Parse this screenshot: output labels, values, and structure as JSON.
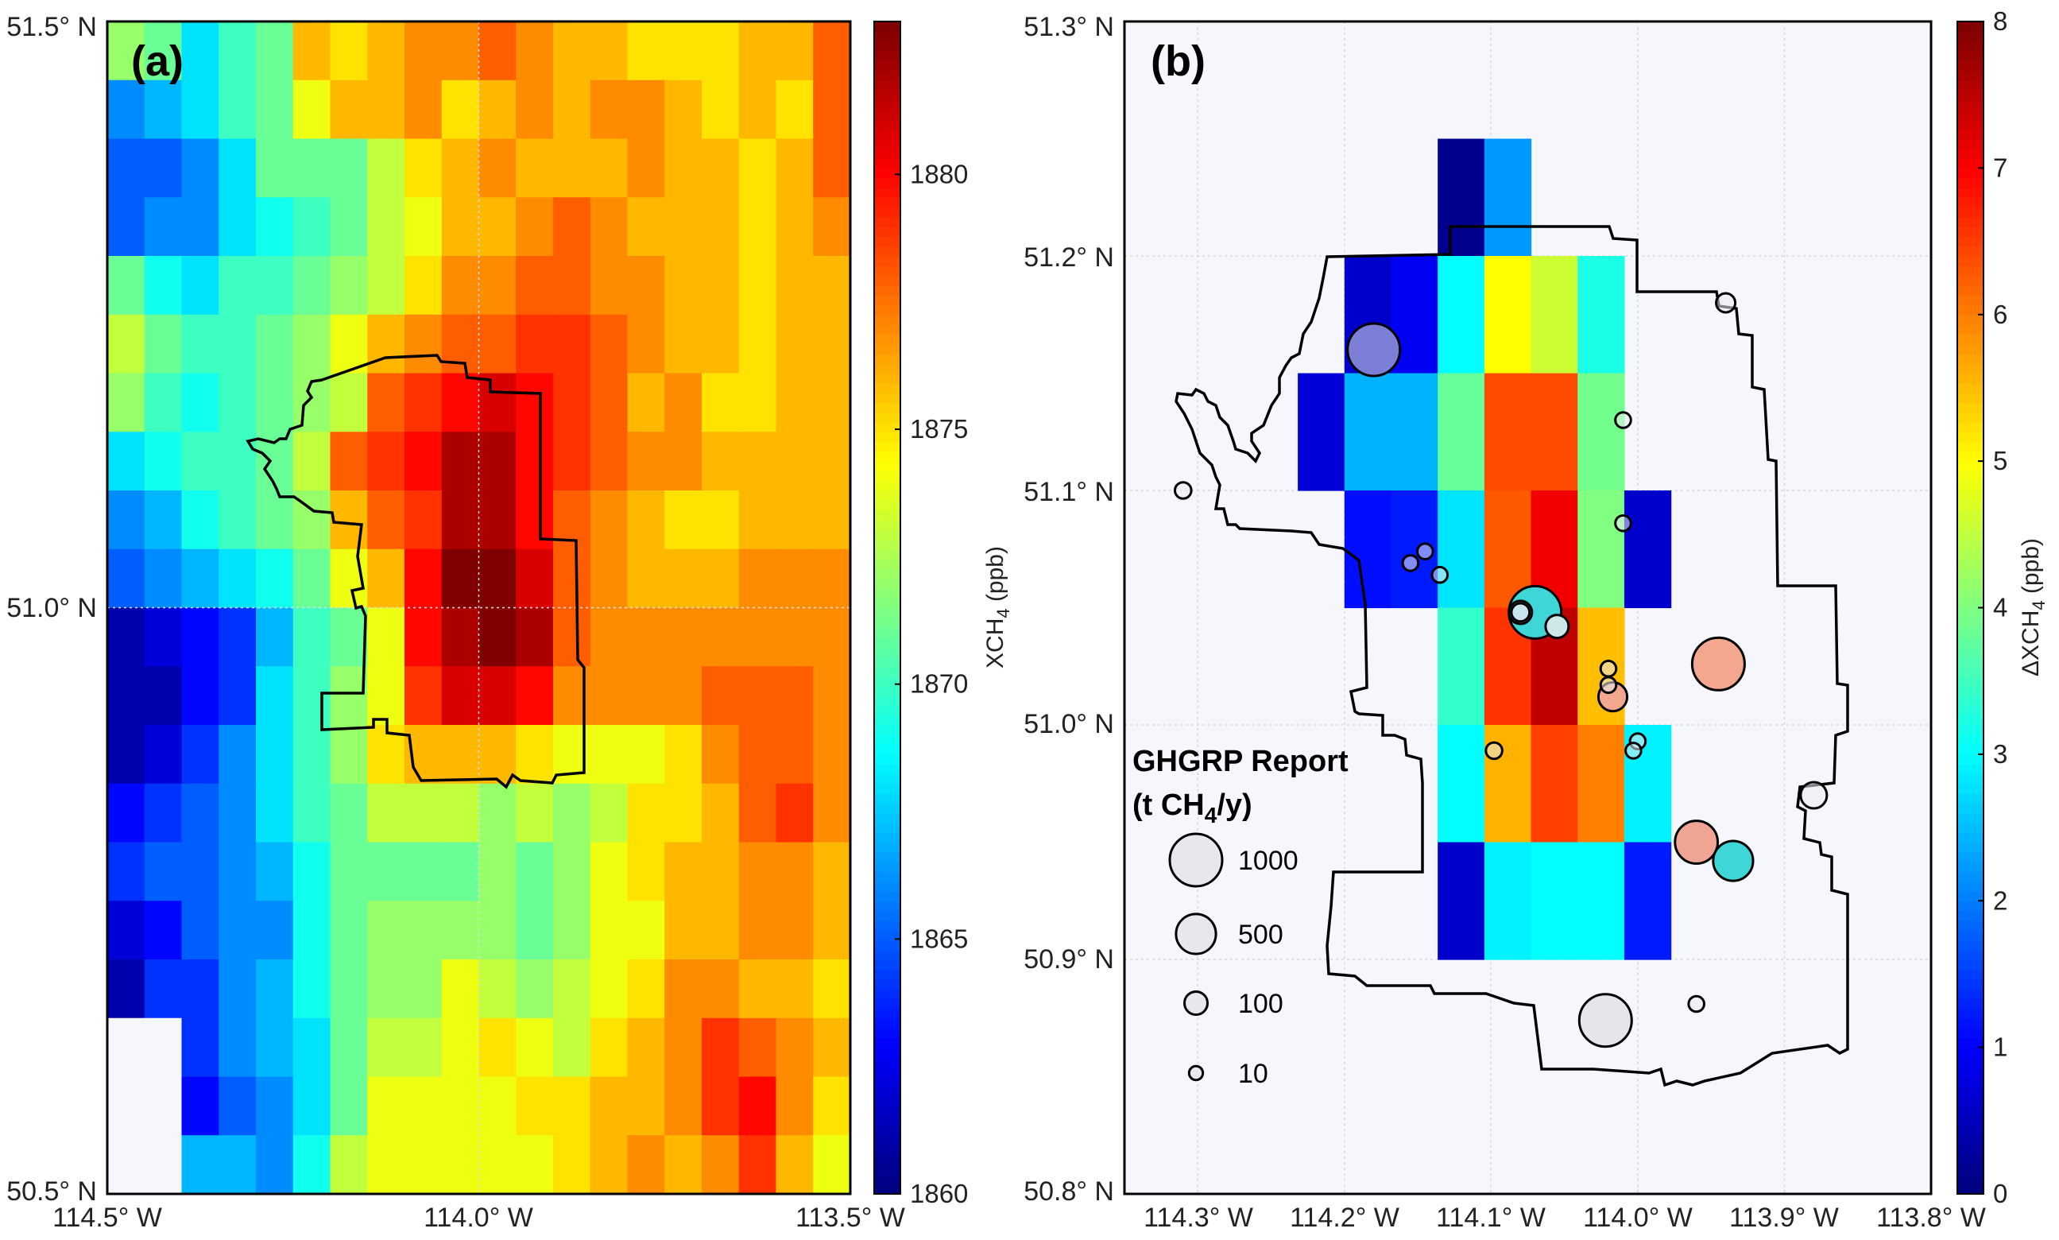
{
  "chart_data": [
    {
      "type": "heatmap",
      "panel_label": "(a)",
      "x_ticks": [
        "114.5° W",
        "114.0° W",
        "113.5° W"
      ],
      "y_ticks": [
        "50.5° N",
        "51.0° N",
        "51.5° N"
      ],
      "xlim": [
        -114.5,
        -113.5
      ],
      "ylim": [
        50.5,
        51.5
      ],
      "colorbar": {
        "label": "XCH4 (ppb)",
        "label_main": "XCH",
        "label_sub": "4",
        "label_unit": " (ppb)",
        "range": [
          1860,
          1883
        ],
        "ticks": [
          "1860",
          "1865",
          "1870",
          "1875",
          "1880"
        ]
      },
      "grid": {
        "nx": 20,
        "ny": 20,
        "row_order": "north_to_south",
        "values": [
          [
            1872,
            1871,
            1868,
            1870,
            1871,
            1876,
            1875,
            1876,
            1877,
            1877,
            1878,
            1877,
            1876,
            1876,
            1875,
            1875,
            1875,
            1876,
            1876,
            1878
          ],
          [
            1866,
            1867,
            1868,
            1870,
            1871,
            1874,
            1876,
            1876,
            1877,
            1875,
            1876,
            1877,
            1876,
            1877,
            1877,
            1876,
            1875,
            1876,
            1875,
            1878
          ],
          [
            1865,
            1865,
            1866,
            1868,
            1871,
            1871,
            1871,
            1873,
            1875,
            1876,
            1877,
            1876,
            1876,
            1876,
            1877,
            1876,
            1876,
            1875,
            1876,
            1878
          ],
          [
            1865,
            1866,
            1866,
            1868,
            1869,
            1870,
            1871,
            1873,
            1874,
            1876,
            1876,
            1877,
            1878,
            1877,
            1876,
            1876,
            1876,
            1875,
            1876,
            1877
          ],
          [
            1871,
            1869,
            1868,
            1870,
            1870,
            1871,
            1872,
            1873,
            1875,
            1877,
            1877,
            1878,
            1878,
            1877,
            1877,
            1876,
            1876,
            1875,
            1876,
            1876
          ],
          [
            1873,
            1871,
            1870,
            1870,
            1871,
            1872,
            1874,
            1876,
            1877,
            1878,
            1878,
            1879,
            1879,
            1878,
            1877,
            1876,
            1876,
            1875,
            1876,
            1876
          ],
          [
            1872,
            1870,
            1869,
            1870,
            1871,
            1872,
            1873,
            1878,
            1879,
            1880,
            1881,
            1880,
            1879,
            1878,
            1876,
            1877,
            1875,
            1875,
            1876,
            1876
          ],
          [
            1868,
            1869,
            1870,
            1870,
            1871,
            1873,
            1878,
            1879,
            1880,
            1882,
            1882,
            1880,
            1879,
            1878,
            1877,
            1877,
            1876,
            1876,
            1876,
            1876
          ],
          [
            1866,
            1867,
            1869,
            1870,
            1871,
            1872,
            1876,
            1878,
            1879,
            1882,
            1882,
            1880,
            1878,
            1877,
            1876,
            1875,
            1875,
            1876,
            1876,
            1876
          ],
          [
            1865,
            1866,
            1867,
            1868,
            1869,
            1871,
            1874,
            1876,
            1880,
            1883,
            1883,
            1881,
            1878,
            1877,
            1876,
            1876,
            1876,
            1877,
            1877,
            1877
          ],
          [
            1861,
            1862,
            1863,
            1864,
            1867,
            1870,
            1871,
            1874,
            1880,
            1882,
            1883,
            1882,
            1878,
            1877,
            1877,
            1877,
            1877,
            1877,
            1877,
            1877
          ],
          [
            1861,
            1861,
            1863,
            1864,
            1868,
            1870,
            1872,
            1874,
            1879,
            1881,
            1881,
            1880,
            1877,
            1877,
            1877,
            1877,
            1878,
            1878,
            1878,
            1877
          ],
          [
            1861,
            1862,
            1864,
            1866,
            1868,
            1870,
            1872,
            1875,
            1876,
            1876,
            1876,
            1875,
            1874,
            1874,
            1874,
            1875,
            1877,
            1878,
            1878,
            1877
          ],
          [
            1863,
            1864,
            1865,
            1866,
            1868,
            1870,
            1871,
            1873,
            1873,
            1873,
            1872,
            1873,
            1872,
            1873,
            1875,
            1875,
            1876,
            1878,
            1879,
            1877
          ],
          [
            1864,
            1865,
            1865,
            1866,
            1867,
            1869,
            1871,
            1871,
            1871,
            1871,
            1872,
            1871,
            1872,
            1874,
            1875,
            1876,
            1876,
            1877,
            1877,
            1876
          ],
          [
            1862,
            1863,
            1865,
            1866,
            1866,
            1869,
            1871,
            1872,
            1872,
            1872,
            1872,
            1871,
            1872,
            1874,
            1874,
            1876,
            1876,
            1877,
            1877,
            1876
          ],
          [
            1861,
            1864,
            1864,
            1866,
            1867,
            1869,
            1871,
            1872,
            1872,
            1874,
            1873,
            1872,
            1873,
            1874,
            1875,
            1877,
            1877,
            1876,
            1876,
            1875
          ],
          [
            null,
            null,
            1864,
            1866,
            1867,
            1868,
            1871,
            1873,
            1873,
            1874,
            1875,
            1874,
            1873,
            1875,
            1876,
            1877,
            1879,
            1878,
            1877,
            1876
          ],
          [
            null,
            null,
            1863,
            1865,
            1866,
            1868,
            1871,
            1874,
            1874,
            1874,
            1874,
            1875,
            1875,
            1876,
            1876,
            1877,
            1879,
            1880,
            1877,
            1875
          ],
          [
            null,
            null,
            1867,
            1867,
            1866,
            1869,
            1873,
            1874,
            1874,
            1874,
            1874,
            1874,
            1875,
            1876,
            1877,
            1876,
            1877,
            1879,
            1876,
            1874
          ]
        ]
      }
    },
    {
      "type": "heatmap",
      "panel_label": "(b)",
      "x_ticks": [
        "114.3° W",
        "114.2° W",
        "114.1° W",
        "114.0° W",
        "113.9° W",
        "113.8° W"
      ],
      "y_ticks": [
        "50.8° N",
        "50.9° N",
        "51.0° N",
        "51.1° N",
        "51.2° N",
        "51.3° N"
      ],
      "xlim": [
        -114.35,
        -113.8
      ],
      "ylim": [
        50.8,
        51.3
      ],
      "colorbar": {
        "label": "ΔXCH4 (ppb)",
        "label_main": "ΔXCH",
        "label_sub": "4",
        "label_unit": " (ppb)",
        "range": [
          0,
          8
        ],
        "ticks": [
          "0",
          "1",
          "2",
          "3",
          "4",
          "5",
          "6",
          "7",
          "8"
        ]
      },
      "cells": [
        {
          "col": 2,
          "row": 1,
          "value": 0.1
        },
        {
          "col": 3,
          "row": 1,
          "value": 2.2
        },
        {
          "col": 0,
          "row": 2,
          "value": 0.6
        },
        {
          "col": 1,
          "row": 2,
          "value": 0.9
        },
        {
          "col": 2,
          "row": 2,
          "value": 3.0
        },
        {
          "col": 3,
          "row": 2,
          "value": 5.0
        },
        {
          "col": 4,
          "row": 2,
          "value": 4.6
        },
        {
          "col": 5,
          "row": 2,
          "value": 3.2
        },
        {
          "col": -1,
          "row": 3,
          "value": 0.7
        },
        {
          "col": 0,
          "row": 3,
          "value": 2.4
        },
        {
          "col": 1,
          "row": 3,
          "value": 2.4
        },
        {
          "col": 2,
          "row": 3,
          "value": 3.8
        },
        {
          "col": 3,
          "row": 3,
          "value": 6.4
        },
        {
          "col": 4,
          "row": 3,
          "value": 6.4
        },
        {
          "col": 5,
          "row": 3,
          "value": 3.9
        },
        {
          "col": 0,
          "row": 4,
          "value": 1.1
        },
        {
          "col": 1,
          "row": 4,
          "value": 1.2
        },
        {
          "col": 2,
          "row": 4,
          "value": 2.8
        },
        {
          "col": 3,
          "row": 4,
          "value": 6.3
        },
        {
          "col": 4,
          "row": 4,
          "value": 7.1
        },
        {
          "col": 5,
          "row": 4,
          "value": 4.0
        },
        {
          "col": 6,
          "row": 4,
          "value": 0.6
        },
        {
          "col": 2,
          "row": 5,
          "value": 3.4
        },
        {
          "col": 3,
          "row": 5,
          "value": 6.6
        },
        {
          "col": 4,
          "row": 5,
          "value": 7.5
        },
        {
          "col": 5,
          "row": 5,
          "value": 5.5
        },
        {
          "col": 2,
          "row": 6,
          "value": 3.0
        },
        {
          "col": 3,
          "row": 6,
          "value": 5.6
        },
        {
          "col": 4,
          "row": 6,
          "value": 6.5
        },
        {
          "col": 5,
          "row": 6,
          "value": 6.0
        },
        {
          "col": 6,
          "row": 6,
          "value": 2.9
        },
        {
          "col": 2,
          "row": 7,
          "value": 0.6
        },
        {
          "col": 3,
          "row": 7,
          "value": 2.9
        },
        {
          "col": 4,
          "row": 7,
          "value": 3.0
        },
        {
          "col": 5,
          "row": 7,
          "value": 3.0
        },
        {
          "col": 6,
          "row": 7,
          "value": 1.2
        }
      ],
      "sources": [
        {
          "lon": -114.18,
          "lat": 51.16,
          "emission": 1000,
          "fill": "#7b7fd6"
        },
        {
          "lon": -113.94,
          "lat": 51.18,
          "emission": 50
        },
        {
          "lon": -114.01,
          "lat": 51.13,
          "emission": 20
        },
        {
          "lon": -114.31,
          "lat": 51.1,
          "emission": 25
        },
        {
          "lon": -114.01,
          "lat": 51.086,
          "emission": 20
        },
        {
          "lon": -114.145,
          "lat": 51.074,
          "emission": 20
        },
        {
          "lon": -114.155,
          "lat": 51.069,
          "emission": 20
        },
        {
          "lon": -114.135,
          "lat": 51.064,
          "emission": 20
        },
        {
          "lon": -114.07,
          "lat": 51.048,
          "emission": 1000,
          "fill": "#3fd6d8"
        },
        {
          "lon": -114.08,
          "lat": 51.048,
          "emission": 100
        },
        {
          "lon": -114.08,
          "lat": 51.048,
          "emission": 40
        },
        {
          "lon": -114.055,
          "lat": 51.042,
          "emission": 100,
          "fill": "#cde8e6"
        },
        {
          "lon": -113.945,
          "lat": 51.026,
          "emission": 1000,
          "fill": "#f3a78f"
        },
        {
          "lon": -114.02,
          "lat": 51.024,
          "emission": 20
        },
        {
          "lon": -114.017,
          "lat": 51.012,
          "emission": 200,
          "fill": "#f3a78f"
        },
        {
          "lon": -114.02,
          "lat": 51.017,
          "emission": 20
        },
        {
          "lon": -114.0,
          "lat": 50.993,
          "emission": 20
        },
        {
          "lon": -114.003,
          "lat": 50.989,
          "emission": 20
        },
        {
          "lon": -114.098,
          "lat": 50.989,
          "emission": 25
        },
        {
          "lon": -113.88,
          "lat": 50.97,
          "emission": 150
        },
        {
          "lon": -113.96,
          "lat": 50.95,
          "emission": 600,
          "fill": "#f0a494"
        },
        {
          "lon": -113.935,
          "lat": 50.942,
          "emission": 500,
          "fill": "#3fd6d8"
        },
        {
          "lon": -114.022,
          "lat": 50.874,
          "emission": 1000,
          "fill": "#e6e6ea"
        },
        {
          "lon": -113.96,
          "lat": 50.881,
          "emission": 20
        }
      ],
      "legend": {
        "title_line1": "GHGRP Report",
        "title_line2_main": "(t CH",
        "title_line2_sub": "4",
        "title_line2_end": "/y)",
        "entries": [
          {
            "label": "1000",
            "value": 1000
          },
          {
            "label": "500",
            "value": 500
          },
          {
            "label": "100",
            "value": 100
          },
          {
            "label": "10",
            "value": 10
          }
        ]
      }
    }
  ]
}
